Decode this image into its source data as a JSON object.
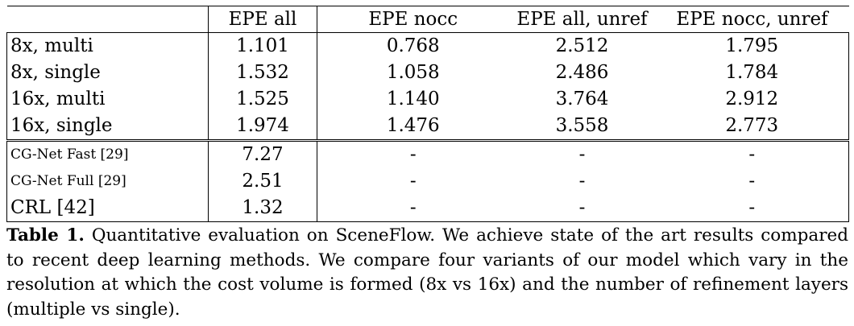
{
  "table": {
    "columns": [
      "",
      "EPE all",
      "EPE nocc",
      "EPE all, unref",
      "EPE nocc, unref"
    ],
    "rows": [
      {
        "label": "8x, multi",
        "values": [
          "1.101",
          "0.768",
          "2.512",
          "1.795"
        ],
        "bold_first": true
      },
      {
        "label": "8x, single",
        "values": [
          "1.532",
          "1.058",
          "2.486",
          "1.784"
        ]
      },
      {
        "label": "16x, multi",
        "values": [
          "1.525",
          "1.140",
          "3.764",
          "2.912"
        ]
      },
      {
        "label": "16x, single",
        "values": [
          "1.974",
          "1.476",
          "3.558",
          "2.773"
        ]
      },
      {
        "label": "CG-Net Fast [29]",
        "values": [
          "7.27",
          "-",
          "-",
          "-"
        ]
      },
      {
        "label": "CG-Net Full [29]",
        "values": [
          "2.51",
          "-",
          "-",
          "-"
        ]
      },
      {
        "label": "CRL [42]",
        "values": [
          "1.32",
          "-",
          "-",
          "-"
        ]
      }
    ]
  },
  "caption": {
    "label": "Table 1.",
    "text": "Quantitative evaluation on SceneFlow. We achieve state of the art results compared to recent deep learning methods. We compare four variants of our model which vary in the resolution at which the cost volume is formed (8x vs 16x) and the number of refinement layers (multiple vs single)."
  }
}
